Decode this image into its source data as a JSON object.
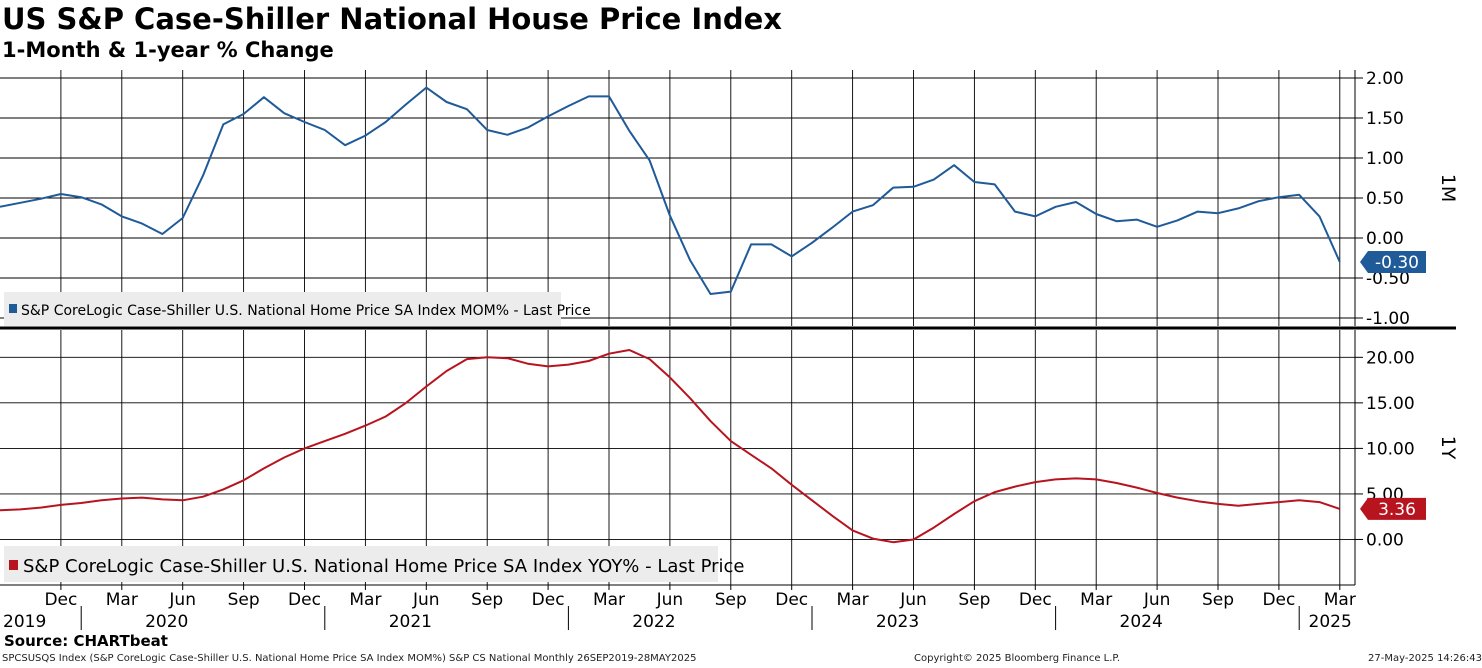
{
  "header": {
    "title": "US S&P Case-Shiller National House Price Index",
    "subtitle": "1-Month & 1-year % Change"
  },
  "footer": {
    "source": "Source: CHARTbeat",
    "ticker_info": "SPCSUSQS Index (S&P CoreLogic Case-Shiller U.S. National Home Price SA Index MOM%) S&P CS National  Monthly 26SEP2019-28MAY2025",
    "copyright": "Copyright© 2025 Bloomberg Finance L.P.",
    "timestamp": "27-May-2025 14:26:43"
  },
  "chart_data": [
    {
      "type": "line",
      "panel": "top",
      "axis_title": "1M",
      "legend": "S&P CoreLogic Case-Shiller U.S. National Home Price SA Index MOM% - Last Price",
      "color": "#1f5a99",
      "ylim": [
        -1.1,
        2.1
      ],
      "yticks": [
        2.0,
        1.5,
        1.0,
        0.5,
        0.0,
        -0.5,
        -1.0
      ],
      "ytick_labels": [
        "2.00",
        "1.50",
        "1.00",
        "0.50",
        "0.00",
        "-0.50",
        "-1.00"
      ],
      "last_value": -0.3,
      "last_label": "-0.30",
      "x_start": 0,
      "values": [
        0.39,
        0.44,
        0.49,
        0.55,
        0.51,
        0.42,
        0.27,
        0.18,
        0.05,
        0.25,
        0.78,
        1.42,
        1.55,
        1.76,
        1.56,
        1.45,
        1.35,
        1.16,
        1.28,
        1.45,
        1.67,
        1.88,
        1.7,
        1.61,
        1.35,
        1.29,
        1.38,
        1.52,
        1.65,
        1.77,
        1.77,
        1.34,
        0.97,
        0.28,
        -0.28,
        -0.7,
        -0.67,
        -0.08,
        -0.08,
        -0.23,
        -0.06,
        0.13,
        0.33,
        0.41,
        0.63,
        0.64,
        0.73,
        0.91,
        0.7,
        0.67,
        0.33,
        0.27,
        0.39,
        0.45,
        0.3,
        0.21,
        0.23,
        0.14,
        0.22,
        0.33,
        0.31,
        0.37,
        0.46,
        0.51,
        0.54,
        0.27,
        -0.3
      ]
    },
    {
      "type": "line",
      "panel": "bottom",
      "axis_title": "1Y",
      "legend": "S&P CoreLogic Case-Shiller U.S. National Home Price SA Index YOY% - Last Price",
      "color": "#b8141f",
      "ylim": [
        -5,
        23
      ],
      "yticks": [
        20,
        15,
        10,
        5,
        0
      ],
      "ytick_labels": [
        "20.00",
        "15.00",
        "10.00",
        "5.00",
        "0.00"
      ],
      "last_value": 3.36,
      "last_label": "3.36",
      "x_start": 0,
      "values": [
        3.2,
        3.3,
        3.5,
        3.8,
        4.0,
        4.3,
        4.5,
        4.6,
        4.4,
        4.3,
        4.7,
        5.5,
        6.5,
        7.8,
        9.0,
        10.0,
        10.8,
        11.6,
        12.5,
        13.5,
        15.0,
        16.8,
        18.5,
        19.8,
        20.0,
        19.9,
        19.3,
        19.0,
        19.2,
        19.6,
        20.4,
        20.8,
        19.8,
        17.8,
        15.5,
        13.0,
        10.8,
        9.3,
        7.8,
        6.0,
        4.3,
        2.6,
        1.0,
        0.1,
        -0.3,
        0.0,
        1.3,
        2.8,
        4.2,
        5.2,
        5.8,
        6.3,
        6.6,
        6.7,
        6.6,
        6.2,
        5.7,
        5.1,
        4.6,
        4.2,
        3.9,
        3.7,
        3.9,
        4.1,
        4.3,
        4.1,
        3.36
      ]
    }
  ],
  "x_axis": {
    "month_ticks": [
      {
        "i": 3,
        "label": "Dec"
      },
      {
        "i": 6,
        "label": "Mar"
      },
      {
        "i": 9,
        "label": "Jun"
      },
      {
        "i": 12,
        "label": "Sep"
      },
      {
        "i": 15,
        "label": "Dec"
      },
      {
        "i": 18,
        "label": "Mar"
      },
      {
        "i": 21,
        "label": "Jun"
      },
      {
        "i": 24,
        "label": "Sep"
      },
      {
        "i": 27,
        "label": "Dec"
      },
      {
        "i": 30,
        "label": "Mar"
      },
      {
        "i": 33,
        "label": "Jun"
      },
      {
        "i": 36,
        "label": "Sep"
      },
      {
        "i": 39,
        "label": "Dec"
      },
      {
        "i": 42,
        "label": "Mar"
      },
      {
        "i": 45,
        "label": "Jun"
      },
      {
        "i": 48,
        "label": "Sep"
      },
      {
        "i": 51,
        "label": "Dec"
      },
      {
        "i": 54,
        "label": "Mar"
      },
      {
        "i": 57,
        "label": "Jun"
      },
      {
        "i": 60,
        "label": "Sep"
      },
      {
        "i": 63,
        "label": "Dec"
      },
      {
        "i": 66,
        "label": "Mar"
      }
    ],
    "year_labels": [
      {
        "i": 0,
        "label": "2019",
        "anchor": "start"
      },
      {
        "i": 7,
        "label": "2020",
        "anchor": "start"
      },
      {
        "i": 19,
        "label": "2021",
        "anchor": "start"
      },
      {
        "i": 31,
        "label": "2022",
        "anchor": "start"
      },
      {
        "i": 43,
        "label": "2023",
        "anchor": "start"
      },
      {
        "i": 55,
        "label": "2024",
        "anchor": "start"
      },
      {
        "i": 66,
        "label": "2025",
        "anchor": "end"
      }
    ],
    "year_separators": [
      4,
      16,
      28,
      40,
      52,
      64
    ]
  }
}
